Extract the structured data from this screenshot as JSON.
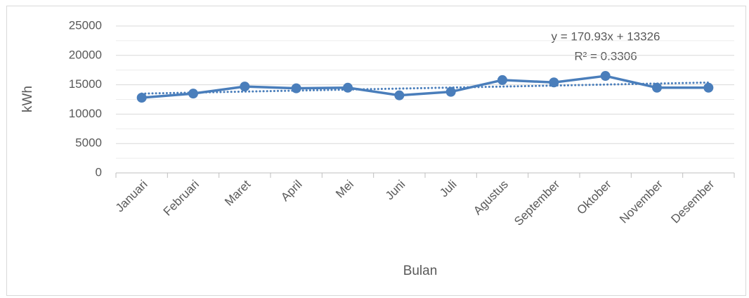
{
  "chart_data": {
    "type": "line",
    "categories": [
      "Januari",
      "Februari",
      "Maret",
      "April",
      "Mei",
      "Juni",
      "Juli",
      "Agustus",
      "September",
      "Oktober",
      "November",
      "Desember"
    ],
    "series": [
      {
        "color": "#4a7ebb",
        "values": [
          12800,
          13500,
          14700,
          14400,
          14500,
          13200,
          13800,
          15800,
          15400,
          16500,
          14500,
          14500
        ]
      }
    ],
    "ylim": [
      0,
      25000
    ],
    "yticks": [
      0,
      5000,
      10000,
      15000,
      20000,
      25000
    ],
    "minor_yticks": [
      2500,
      7500,
      12500,
      17500,
      22500
    ],
    "grid": true,
    "xlabel": "Bulan",
    "ylabel": "kWh",
    "trendline": {
      "slope": 170.93,
      "intercept": 13326,
      "equation_label": "y = 170.93x + 13326",
      "r2_label": "R² = 0.3306"
    }
  }
}
